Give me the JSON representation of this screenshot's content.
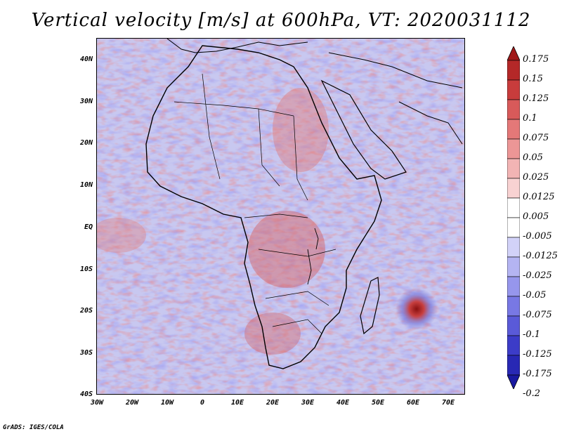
{
  "title": "Vertical velocity [m/s] at 600hPa, VT: 2020031112",
  "lat_labels": [
    "40N",
    "30N",
    "20N",
    "10N",
    "EQ",
    "10S",
    "20S",
    "30S",
    "40S"
  ],
  "lon_labels": [
    "30W",
    "20W",
    "10W",
    "0",
    "10E",
    "20E",
    "30E",
    "40E",
    "50E",
    "60E",
    "70E"
  ],
  "colorbar_labels": [
    "0.175",
    "0.15",
    "0.125",
    "0.1",
    "0.075",
    "0.05",
    "0.025",
    "0.0125",
    "0.005",
    "-0.005",
    "-0.0125",
    "-0.025",
    "-0.05",
    "-0.075",
    "-0.1",
    "-0.125",
    "-0.175",
    "-0.2"
  ],
  "colorbar_colors": [
    "#a01919",
    "#b42828",
    "#c83c3c",
    "#d85a5a",
    "#e47878",
    "#ec9696",
    "#f2b4b4",
    "#f8d2d2",
    "#ffffff",
    "#ffffff",
    "#d2d2f8",
    "#b4b4f2",
    "#9696ec",
    "#7878e4",
    "#5a5ad8",
    "#3c3cc8",
    "#2828b4",
    "#1919a0"
  ],
  "credit": "GrADS: IGES/COLA",
  "map": {
    "lon_range": [
      -30,
      75
    ],
    "lat_range": [
      -40,
      45
    ],
    "field": "vertical velocity",
    "level": "600hPa",
    "valid_time": "2020031112"
  }
}
